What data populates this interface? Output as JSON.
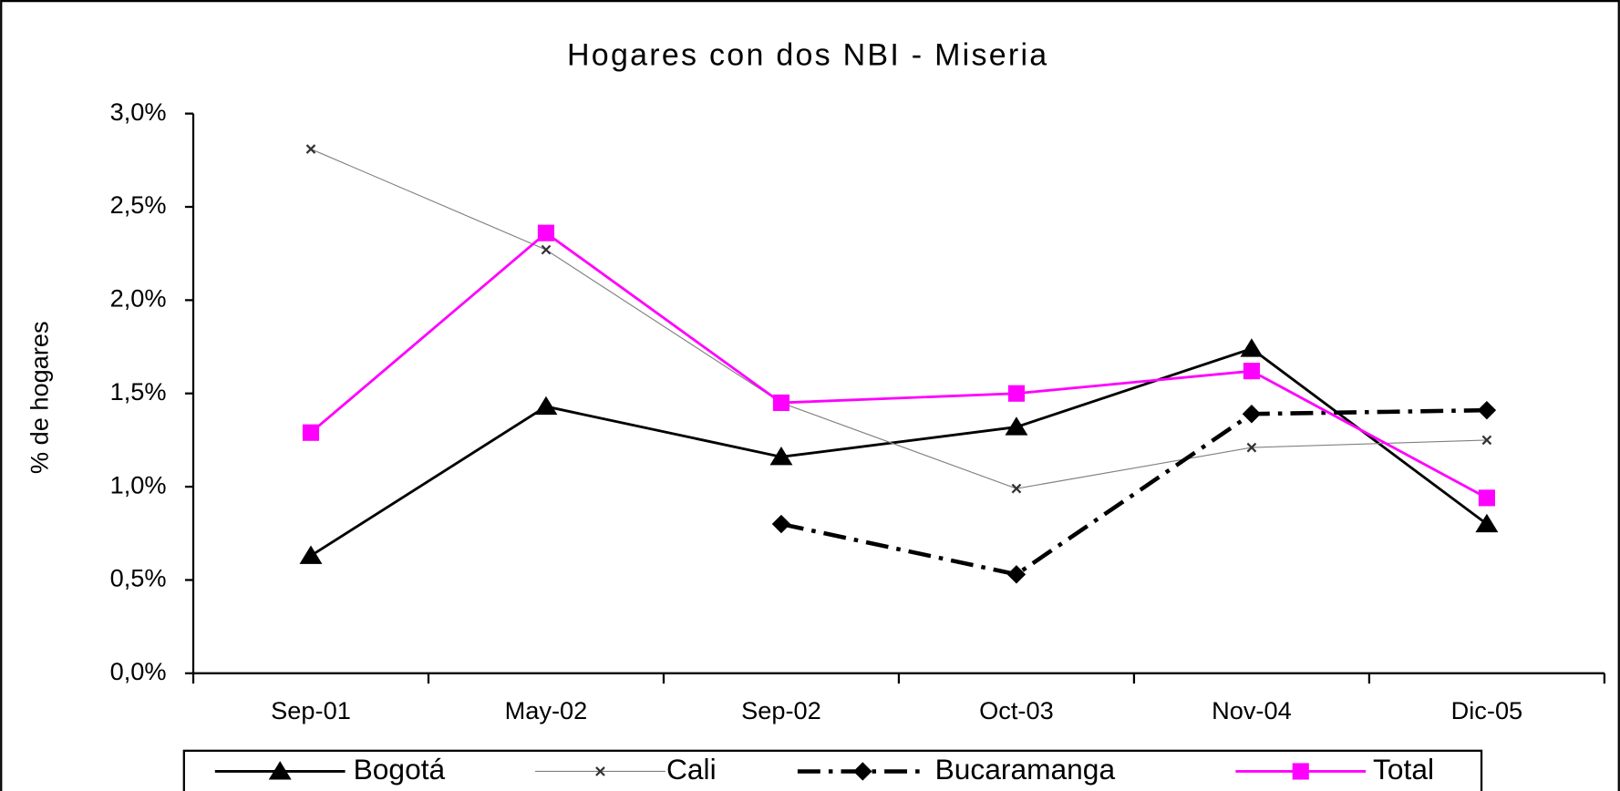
{
  "chart_data": {
    "type": "line",
    "title": "Hogares con dos NBI - Miseria",
    "y_label": "% de hogares",
    "categories": [
      "Sep-01",
      "May-02",
      "Sep-02",
      "Oct-03",
      "Nov-04",
      "Dic-05"
    ],
    "series": [
      {
        "name": "Bogotá",
        "color": "#000000",
        "marker": "triangle",
        "dash": "solid",
        "values": [
          0.63,
          1.43,
          1.16,
          1.32,
          1.74,
          0.8
        ]
      },
      {
        "name": "Cali",
        "color": "#808080",
        "marker": "x",
        "dash": "solid",
        "values": [
          2.81,
          2.27,
          1.45,
          0.99,
          1.21,
          1.25
        ]
      },
      {
        "name": "Bucaramanga",
        "color": "#000000",
        "marker": "diamond",
        "dash": "dashdot",
        "values": [
          null,
          null,
          0.8,
          0.53,
          1.39,
          1.41
        ]
      },
      {
        "name": "Total",
        "color": "#ff00ff",
        "marker": "square",
        "dash": "solid",
        "values": [
          1.29,
          2.36,
          1.45,
          1.5,
          1.62,
          0.94
        ]
      }
    ],
    "ylim": [
      0,
      3
    ],
    "yticks": [
      {
        "value": 0,
        "label": "0,0%"
      },
      {
        "value": 0.5,
        "label": "0,5%"
      },
      {
        "value": 1,
        "label": "1,0%"
      },
      {
        "value": 1.5,
        "label": "1,5%"
      },
      {
        "value": 2,
        "label": "2,0%"
      },
      {
        "value": 2.5,
        "label": "2,5%"
      },
      {
        "value": 3,
        "label": "3,0%"
      }
    ],
    "legend": "bottom"
  }
}
